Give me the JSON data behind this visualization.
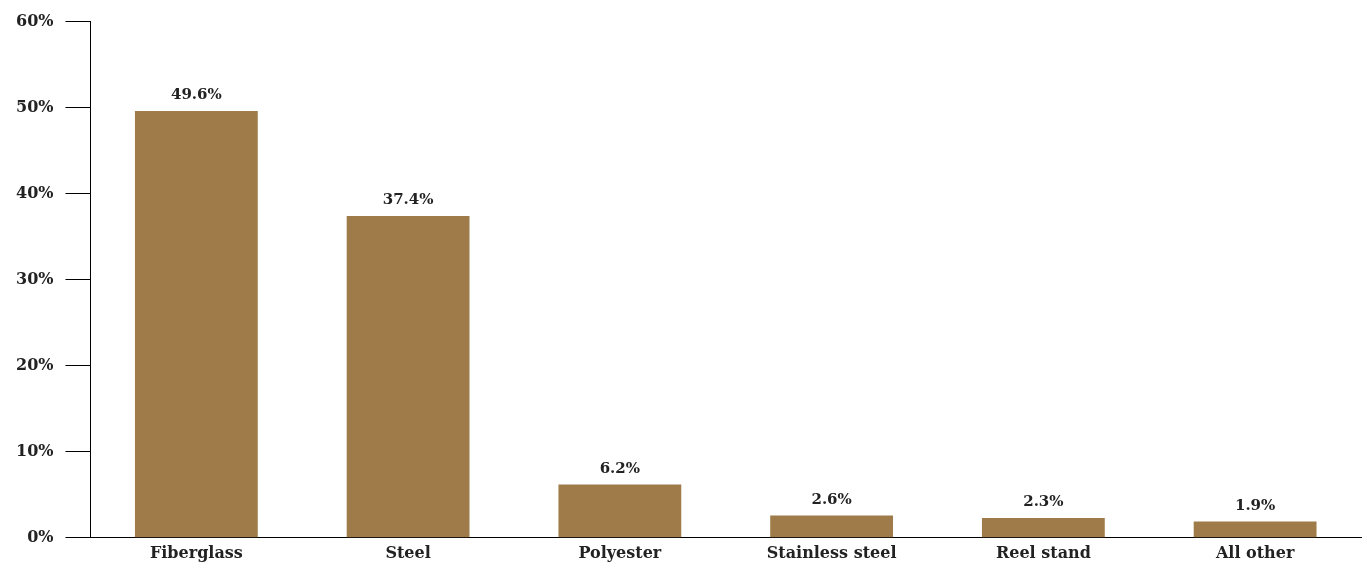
{
  "chart_data": {
    "type": "bar",
    "categories": [
      "Fiberglass",
      "Steel",
      "Polyester",
      "Stainless steel",
      "Reel stand",
      "All other"
    ],
    "values": [
      49.6,
      37.4,
      6.2,
      2.6,
      2.3,
      1.9
    ],
    "value_labels": [
      "49.6%",
      "37.4%",
      "6.2%",
      "2.6%",
      "2.3%",
      "1.9%"
    ],
    "color": "#a07b4a",
    "ylim": [
      0,
      60
    ],
    "yticks": [
      {
        "value": 0,
        "label": "0%"
      },
      {
        "value": 10,
        "label": "10%"
      },
      {
        "value": 20,
        "label": "20%"
      },
      {
        "value": 30,
        "label": "30%"
      },
      {
        "value": 40,
        "label": "40%"
      },
      {
        "value": 50,
        "label": "50%"
      },
      {
        "value": 60,
        "label": "60%"
      }
    ],
    "grid": false,
    "legend": false
  }
}
